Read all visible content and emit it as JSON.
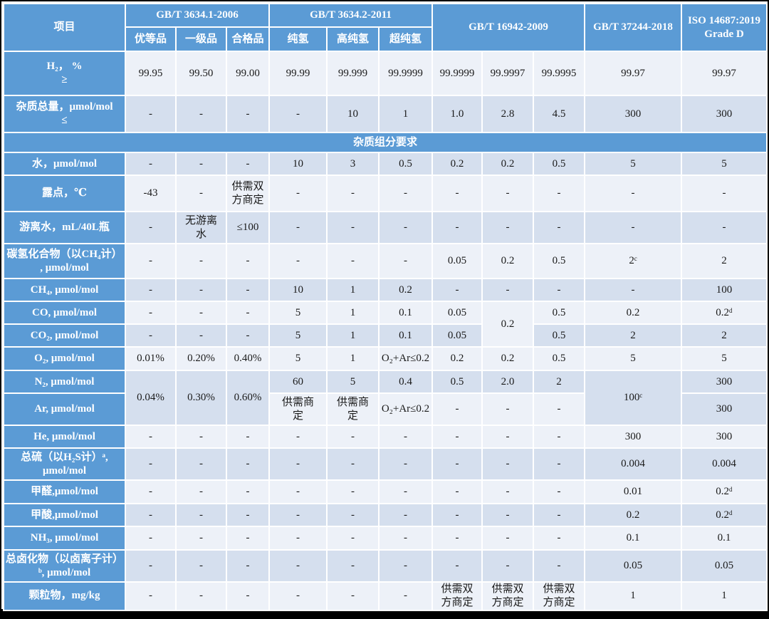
{
  "colors": {
    "header_blue": "#5B9BD5",
    "row_light": "#EDF1F8",
    "row_dark": "#D5DFEE",
    "value_text": "#1a1a1a",
    "cell_border": "#FFFFFF",
    "frame": "#000000"
  },
  "table": {
    "corner_label": "项目",
    "header_groups": [
      {
        "label": "GB/T 3634.1-2006",
        "span": 3,
        "subs": [
          "优等品",
          "一级品",
          "合格品"
        ]
      },
      {
        "label": "GB/T 3634.2-2011",
        "span": 3,
        "subs": [
          "纯氢",
          "高纯氢",
          "超纯氢"
        ]
      },
      {
        "label": "GB/T 16942-2009",
        "span": 3,
        "subs": null
      },
      {
        "label": "GB/T 37244-2018",
        "span": 1,
        "subs": null
      },
      {
        "label": "ISO 14687:2019\nGrade D",
        "span": 1,
        "subs": null
      }
    ],
    "rows": [
      {
        "label": "H₂， %\n≥",
        "shade": "light",
        "cells": [
          "99.95",
          "99.50",
          "99.00",
          "99.99",
          "99.999",
          "99.9999",
          "99.9999",
          "99.9997",
          "99.9995",
          "99.97",
          "99.97"
        ]
      },
      {
        "label": "杂质总量，μmol/mol\n≤",
        "shade": "dark",
        "cells": [
          "-",
          "-",
          "-",
          "-",
          "10",
          "1",
          "1.0",
          "2.8",
          "4.5",
          "300",
          "300"
        ]
      },
      {
        "section": "杂质组分要求"
      },
      {
        "label": "水，μmol/mol",
        "shade": "dark",
        "cells": [
          "-",
          "-",
          "-",
          "10",
          "3",
          "0.5",
          "0.2",
          "0.2",
          "0.5",
          "5",
          "5"
        ]
      },
      {
        "label": "露点，℃",
        "shade": "light",
        "cells": [
          "-43",
          "-",
          "供需双\n方商定",
          "-",
          "-",
          "-",
          "-",
          "-",
          "-",
          "-",
          "-"
        ]
      },
      {
        "label": "游离水，mL/40L瓶",
        "shade": "dark",
        "cells": [
          "-",
          "无游离\n水",
          "≤100",
          "-",
          "-",
          "-",
          "-",
          "-",
          "-",
          "-",
          "-"
        ]
      },
      {
        "label": "碳氢化合物（以CH₄计）\n, μmol/mol",
        "shade": "light",
        "cells": [
          "-",
          "-",
          "-",
          "-",
          "-",
          "-",
          "0.05",
          "0.2",
          "0.5",
          "2ᶜ",
          "2"
        ]
      },
      {
        "label": "CH₄, μmol/mol",
        "shade": "dark",
        "cells": [
          "-",
          "-",
          "-",
          "10",
          "1",
          "0.2",
          "-",
          "-",
          "-",
          "-",
          "100"
        ]
      },
      {
        "label": "CO, μmol/mol",
        "shade": "light",
        "cells": [
          "-",
          "-",
          "-",
          "5",
          "1",
          "0.1",
          "0.05",
          {
            "text": "0.2",
            "rowspan": 2,
            "shade": "light"
          },
          "0.5",
          "0.2",
          "0.2ᵈ"
        ]
      },
      {
        "label": "CO₂, μmol/mol",
        "shade": "dark",
        "cells": [
          "-",
          "-",
          "-",
          "5",
          "1",
          "0.1",
          "0.05",
          "0.5",
          "2",
          "2"
        ]
      },
      {
        "label": "O₂, μmol/mol",
        "shade": "light",
        "cells": [
          "0.01%",
          "0.20%",
          "0.40%",
          "5",
          "1",
          "O₂+Ar≤0.2",
          "0.2",
          "0.2",
          "0.5",
          "5",
          "5"
        ]
      },
      {
        "label": "N₂, μmol/mol",
        "shade": "dark",
        "cells": [
          {
            "text": "0.04%",
            "rowspan": 2,
            "shade": "dark"
          },
          {
            "text": "0.30%",
            "rowspan": 2,
            "shade": "dark"
          },
          {
            "text": "0.60%",
            "rowspan": 2,
            "shade": "dark"
          },
          "60",
          "5",
          "0.4",
          "0.5",
          "2.0",
          "2",
          {
            "text": "100ᶜ",
            "rowspan": 2,
            "shade": "dark"
          },
          {
            "text": "300",
            "shade": "dark"
          }
        ]
      },
      {
        "label": "Ar, μmol/mol",
        "shade": "light",
        "cells": [
          "供需商\n定",
          "供需商\n定",
          "O₂+Ar≤0.2",
          "-",
          "-",
          "-",
          {
            "text": "300",
            "shade": "dark"
          }
        ]
      },
      {
        "label": "He, μmol/mol",
        "shade": "light",
        "cells": [
          "-",
          "-",
          "-",
          "-",
          "-",
          "-",
          "-",
          "-",
          "-",
          "300",
          "300"
        ]
      },
      {
        "label": "总硫（以H₂S计）ᵃ,\nμmol/mol",
        "shade": "dark",
        "cells": [
          "-",
          "-",
          "-",
          "-",
          "-",
          "-",
          "-",
          "-",
          "-",
          "0.004",
          "0.004"
        ]
      },
      {
        "label": "甲醛,μmol/mol",
        "shade": "light",
        "cells": [
          "-",
          "-",
          "-",
          "-",
          "-",
          "-",
          "-",
          "-",
          "-",
          "0.01",
          "0.2ᵈ"
        ]
      },
      {
        "label": "甲酸,μmol/mol",
        "shade": "dark",
        "cells": [
          "-",
          "-",
          "-",
          "-",
          "-",
          "-",
          "-",
          "-",
          "-",
          "0.2",
          "0.2ᵈ"
        ]
      },
      {
        "label": "NH₃, μmol/mol",
        "shade": "light",
        "cells": [
          "-",
          "-",
          "-",
          "-",
          "-",
          "-",
          "-",
          "-",
          "-",
          "0.1",
          "0.1"
        ]
      },
      {
        "label": "总卤化物（以卤离子计）\nᵇ, μmol/mol",
        "shade": "dark",
        "cells": [
          "-",
          "-",
          "-",
          "-",
          "-",
          "-",
          "-",
          "-",
          "-",
          "0.05",
          "0.05"
        ]
      },
      {
        "label": "颗粒物，mg/kg",
        "shade": "light",
        "cells": [
          "-",
          "-",
          "-",
          "-",
          "-",
          "-",
          "供需双\n方商定",
          "供需双\n方商定",
          "供需双\n方商定",
          "1",
          "1"
        ]
      }
    ]
  }
}
